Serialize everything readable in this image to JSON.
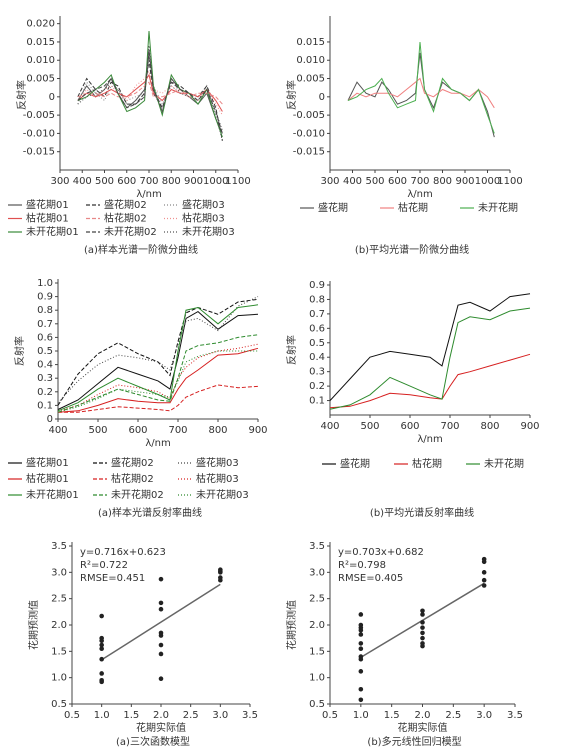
{
  "chart_data": [
    {
      "type": "line",
      "caption": "(a)样本光谱一阶微分曲线",
      "xlabel": "λ/nm",
      "ylabel": "反射率",
      "xlim": [
        300,
        1100
      ],
      "xticks": [
        300,
        400,
        500,
        600,
        700,
        800,
        900,
        1000,
        1100
      ],
      "ylim": [
        -0.02,
        0.021
      ],
      "yticks": [
        {
          "value": 0.02,
          "label": "0.020"
        },
        0.015,
        {
          "value": 0.01,
          "label": "0.010"
        },
        0.005,
        0,
        -0.005,
        {
          "value": -0.01,
          "label": "-0.010"
        },
        -0.015
      ],
      "x": [
        380,
        420,
        460,
        500,
        530,
        560,
        600,
        640,
        680,
        700,
        720,
        760,
        800,
        840,
        880,
        920,
        960,
        1000,
        1030
      ],
      "series": [
        {
          "name": "盛花期01",
          "color": "#555555",
          "dash": "solid",
          "values": [
            -0.001,
            0.003,
            0.0,
            0.002,
            0.005,
            0.001,
            -0.003,
            -0.001,
            0.002,
            0.013,
            0.002,
            -0.004,
            0.005,
            0.002,
            0.0,
            -0.002,
            0.001,
            -0.006,
            -0.01
          ]
        },
        {
          "name": "盛花期02",
          "color": "#333333",
          "dash": "dashed",
          "values": [
            0.0,
            0.005,
            0.002,
            0.0,
            0.004,
            0.003,
            -0.002,
            -0.002,
            0.001,
            0.01,
            0.001,
            -0.003,
            0.004,
            0.003,
            0.001,
            0.0,
            0.003,
            -0.003,
            -0.012
          ]
        },
        {
          "name": "盛花期03",
          "color": "#888888",
          "dash": "dotted",
          "values": [
            -0.002,
            0.004,
            0.001,
            -0.001,
            0.003,
            0.002,
            -0.001,
            0.0,
            0.001,
            0.011,
            0.003,
            -0.002,
            0.003,
            0.001,
            0.001,
            0.0,
            0.002,
            -0.004,
            -0.009
          ]
        },
        {
          "name": "枯花期01",
          "color": "#e05050",
          "dash": "solid",
          "values": [
            -0.001,
            0.001,
            0.0,
            0.001,
            0.002,
            0.001,
            0.0,
            0.002,
            0.004,
            0.006,
            0.001,
            -0.001,
            0.002,
            0.001,
            0.001,
            0.0,
            0.002,
            -0.001,
            -0.004
          ]
        },
        {
          "name": "枯花期02",
          "color": "#e88888",
          "dash": "dashed",
          "values": [
            0.0,
            0.001,
            0.001,
            0.0,
            0.001,
            0.0,
            0.0,
            0.001,
            0.003,
            0.004,
            0.0,
            0.0,
            0.001,
            0.002,
            0.0,
            0.001,
            0.001,
            0.0,
            -0.002
          ]
        },
        {
          "name": "枯花期03",
          "color": "#f09090",
          "dash": "dotted",
          "values": [
            -0.001,
            0.002,
            0.0,
            0.002,
            0.003,
            0.001,
            -0.001,
            0.003,
            0.005,
            0.007,
            0.002,
            0.001,
            0.003,
            0.001,
            0.0,
            -0.001,
            0.002,
            -0.002,
            -0.005
          ]
        },
        {
          "name": "未开花期01",
          "color": "#3a8a3a",
          "dash": "solid",
          "values": [
            -0.001,
            0.0,
            0.002,
            0.004,
            0.006,
            0.001,
            -0.004,
            -0.003,
            -0.001,
            0.018,
            0.003,
            -0.005,
            0.006,
            0.002,
            0.001,
            -0.002,
            0.002,
            -0.006,
            -0.011
          ]
        },
        {
          "name": "未开花期02",
          "color": "#444444",
          "dash": "dashed",
          "values": [
            -0.001,
            0.001,
            0.002,
            0.003,
            0.005,
            0.001,
            -0.003,
            -0.002,
            0.0,
            0.012,
            0.002,
            -0.003,
            0.004,
            0.002,
            0.001,
            -0.001,
            0.002,
            -0.004,
            -0.01
          ]
        },
        {
          "name": "未开花期03",
          "color": "#555555",
          "dash": "dotted",
          "values": [
            -0.002,
            0.0,
            0.001,
            0.002,
            0.004,
            0.002,
            -0.002,
            -0.002,
            0.0,
            0.014,
            0.002,
            -0.004,
            0.005,
            0.001,
            0.0,
            -0.001,
            0.003,
            -0.005,
            -0.012
          ]
        }
      ]
    },
    {
      "type": "line",
      "caption": "(b)平均光谱一阶微分曲线",
      "xlabel": "λ/nm",
      "ylabel": "反射率",
      "xlim": [
        300,
        1100
      ],
      "xticks": [
        300,
        400,
        500,
        600,
        700,
        800,
        900,
        1000,
        1100
      ],
      "ylim": [
        -0.02,
        0.021
      ],
      "yticks": [
        0.015,
        {
          "value": 0.01,
          "label": "0.010"
        },
        0.005,
        0,
        -0.005,
        {
          "value": -0.01,
          "label": "-0.010"
        },
        -0.015
      ],
      "x": [
        380,
        420,
        460,
        500,
        530,
        560,
        600,
        640,
        680,
        700,
        720,
        760,
        800,
        840,
        880,
        920,
        960,
        1000,
        1030
      ],
      "series": [
        {
          "name": "盛花期",
          "color": "#555555",
          "dash": "solid",
          "values": [
            -0.001,
            0.004,
            0.001,
            0.0,
            0.004,
            0.002,
            -0.002,
            -0.001,
            0.001,
            0.012,
            0.002,
            -0.003,
            0.004,
            0.002,
            0.001,
            -0.001,
            0.002,
            -0.004,
            -0.011
          ]
        },
        {
          "name": "枯花期",
          "color": "#f08080",
          "dash": "solid",
          "values": [
            -0.001,
            0.001,
            0.0,
            0.001,
            0.001,
            0.001,
            0.0,
            0.002,
            0.004,
            0.005,
            0.001,
            0.0,
            0.002,
            0.001,
            0.001,
            0.0,
            0.002,
            0.0,
            -0.003
          ]
        },
        {
          "name": "未开花期",
          "color": "#4caf50",
          "dash": "solid",
          "values": [
            -0.001,
            0.0,
            0.002,
            0.003,
            0.005,
            0.001,
            -0.003,
            -0.002,
            -0.001,
            0.015,
            0.002,
            -0.004,
            0.005,
            0.002,
            0.001,
            -0.001,
            0.002,
            -0.005,
            -0.01
          ]
        }
      ]
    },
    {
      "type": "line",
      "caption": "(a)样本光谱反射率曲线",
      "xlabel": "λ/nm",
      "ylabel": "反射率",
      "xlim": [
        400,
        900
      ],
      "xticks": [
        400,
        500,
        600,
        700,
        800,
        900
      ],
      "ylim": [
        0,
        1
      ],
      "yticks": [
        0,
        0.1,
        0.2,
        0.3,
        0.4,
        0.5,
        0.6,
        0.7,
        0.8,
        0.9,
        {
          "value": 1,
          "label": "1.0"
        }
      ],
      "x": [
        400,
        450,
        500,
        550,
        600,
        650,
        680,
        700,
        720,
        750,
        800,
        850,
        900
      ],
      "series": [
        {
          "name": "盛花期01",
          "color": "#111111",
          "dash": "solid",
          "values": [
            0.07,
            0.14,
            0.26,
            0.38,
            0.33,
            0.28,
            0.22,
            0.45,
            0.74,
            0.79,
            0.66,
            0.76,
            0.77
          ]
        },
        {
          "name": "盛花期02",
          "color": "#111111",
          "dash": "dashed",
          "values": [
            0.1,
            0.33,
            0.48,
            0.56,
            0.48,
            0.42,
            0.32,
            0.57,
            0.78,
            0.82,
            0.77,
            0.86,
            0.88
          ]
        },
        {
          "name": "盛花期03",
          "color": "#444444",
          "dash": "dotted",
          "values": [
            0.12,
            0.28,
            0.4,
            0.47,
            0.45,
            0.42,
            0.36,
            0.55,
            0.72,
            0.74,
            0.65,
            0.83,
            0.9
          ]
        },
        {
          "name": "枯花期01",
          "color": "#d62020",
          "dash": "solid",
          "values": [
            0.05,
            0.06,
            0.1,
            0.15,
            0.13,
            0.12,
            0.12,
            0.22,
            0.3,
            0.36,
            0.47,
            0.48,
            0.52
          ]
        },
        {
          "name": "枯花期02",
          "color": "#d62020",
          "dash": "dashed",
          "values": [
            0.05,
            0.05,
            0.07,
            0.09,
            0.08,
            0.07,
            0.06,
            0.1,
            0.16,
            0.2,
            0.25,
            0.23,
            0.24
          ]
        },
        {
          "name": "枯花期03",
          "color": "#d62020",
          "dash": "dotted",
          "values": [
            0.06,
            0.1,
            0.18,
            0.25,
            0.23,
            0.2,
            0.15,
            0.3,
            0.38,
            0.45,
            0.5,
            0.52,
            0.55
          ]
        },
        {
          "name": "未开花期01",
          "color": "#2e8b2e",
          "dash": "solid",
          "values": [
            0.06,
            0.12,
            0.22,
            0.3,
            0.24,
            0.18,
            0.14,
            0.5,
            0.8,
            0.82,
            0.7,
            0.82,
            0.84
          ]
        },
        {
          "name": "未开花期02",
          "color": "#2e8b2e",
          "dash": "dashed",
          "values": [
            0.05,
            0.1,
            0.16,
            0.22,
            0.18,
            0.14,
            0.13,
            0.3,
            0.5,
            0.54,
            0.56,
            0.6,
            0.62
          ]
        },
        {
          "name": "未开花期03",
          "color": "#2e8b2e",
          "dash": "dotted",
          "values": [
            0.05,
            0.09,
            0.15,
            0.22,
            0.2,
            0.18,
            0.16,
            0.28,
            0.42,
            0.46,
            0.5,
            0.5,
            0.5
          ]
        }
      ]
    },
    {
      "type": "line",
      "caption": "(b)平均光谱反射率曲线",
      "xlabel": "λ/nm",
      "ylabel": "反射率",
      "xlim": [
        400,
        900
      ],
      "xticks": [
        400,
        500,
        600,
        700,
        800,
        900
      ],
      "ylim": [
        0,
        0.9
      ],
      "yticks": [
        0.1,
        0.2,
        0.3,
        0.4,
        0.5,
        0.6,
        0.7,
        0.8,
        0.9
      ],
      "x": [
        400,
        450,
        500,
        550,
        600,
        650,
        680,
        700,
        720,
        750,
        800,
        850,
        900
      ],
      "series": [
        {
          "name": "盛花期",
          "color": "#111111",
          "dash": "solid",
          "values": [
            0.1,
            0.25,
            0.4,
            0.44,
            0.42,
            0.4,
            0.34,
            0.55,
            0.76,
            0.78,
            0.72,
            0.82,
            0.84
          ]
        },
        {
          "name": "枯花期",
          "color": "#d62020",
          "dash": "solid",
          "values": [
            0.05,
            0.06,
            0.1,
            0.15,
            0.14,
            0.12,
            0.11,
            0.2,
            0.28,
            0.3,
            0.34,
            0.38,
            0.42
          ]
        },
        {
          "name": "未开花期",
          "color": "#2e8b2e",
          "dash": "solid",
          "values": [
            0.04,
            0.07,
            0.14,
            0.26,
            0.2,
            0.14,
            0.11,
            0.4,
            0.64,
            0.68,
            0.66,
            0.72,
            0.74
          ]
        }
      ]
    },
    {
      "type": "scatter",
      "caption": "(a)三次函数模型",
      "xlabel": "花期实际值",
      "ylabel": "花期预测值",
      "annotations": [
        "y=0.716x+0.623",
        "R²=0.722",
        "RMSE=0.451"
      ],
      "xlim": [
        0.5,
        3.5
      ],
      "xticks": [
        0.5,
        {
          "value": 1,
          "label": "1.0"
        },
        1.5,
        {
          "value": 2,
          "label": "2.0"
        },
        2.5,
        {
          "value": 3,
          "label": "3.0"
        },
        3.5
      ],
      "ylim": [
        0.5,
        3.5
      ],
      "yticks": [
        0.5,
        {
          "value": 1,
          "label": "1.0"
        },
        1.5,
        {
          "value": 2,
          "label": "2.0"
        },
        2.5,
        {
          "value": 3,
          "label": "3.0"
        },
        3.5
      ],
      "color": "#222222",
      "x": [
        1,
        1,
        1,
        1,
        1,
        1,
        1,
        1,
        1,
        2,
        2,
        2,
        2,
        2,
        2,
        2,
        2,
        3,
        3,
        3,
        3,
        3
      ],
      "values": [
        0.92,
        0.95,
        1.08,
        1.35,
        1.55,
        1.62,
        1.7,
        1.75,
        2.17,
        0.98,
        1.45,
        1.62,
        1.8,
        1.85,
        2.3,
        2.42,
        2.87,
        2.85,
        2.9,
        3.0,
        3.02,
        3.05
      ],
      "fit": {
        "color": "#666666",
        "x": [
          1,
          3
        ],
        "values": [
          1.339,
          2.771
        ]
      }
    },
    {
      "type": "scatter",
      "caption": "(b)多元线性回归模型",
      "xlabel": "花期实际值",
      "ylabel": "花期预测值",
      "annotations": [
        "y=0.703x+0.682",
        "R²=0.798",
        "RMSE=0.405"
      ],
      "xlim": [
        0.5,
        3.5
      ],
      "xticks": [
        0.5,
        {
          "value": 1,
          "label": "1.0"
        },
        1.5,
        {
          "value": 2,
          "label": "2.0"
        },
        2.5,
        {
          "value": 3,
          "label": "3.0"
        },
        3.5
      ],
      "ylim": [
        0.5,
        3.5
      ],
      "yticks": [
        0.5,
        {
          "value": 1,
          "label": "1.0"
        },
        1.5,
        {
          "value": 2,
          "label": "2.0"
        },
        2.5,
        {
          "value": 3,
          "label": "3.0"
        },
        3.5
      ],
      "color": "#222222",
      "x": [
        1,
        1,
        1,
        1,
        1,
        1,
        1,
        1,
        1,
        1,
        1,
        1,
        2,
        2,
        2,
        2,
        2,
        2,
        2,
        2,
        3,
        3,
        3,
        3,
        3
      ],
      "values": [
        0.58,
        0.78,
        1.12,
        1.35,
        1.4,
        1.55,
        1.65,
        1.82,
        1.9,
        1.95,
        2.0,
        2.2,
        1.6,
        1.65,
        1.75,
        1.85,
        1.95,
        2.05,
        2.2,
        2.27,
        2.75,
        2.85,
        3.0,
        3.2,
        3.25
      ],
      "fit": {
        "color": "#666666",
        "x": [
          1,
          3
        ],
        "values": [
          1.385,
          2.791
        ]
      }
    }
  ]
}
